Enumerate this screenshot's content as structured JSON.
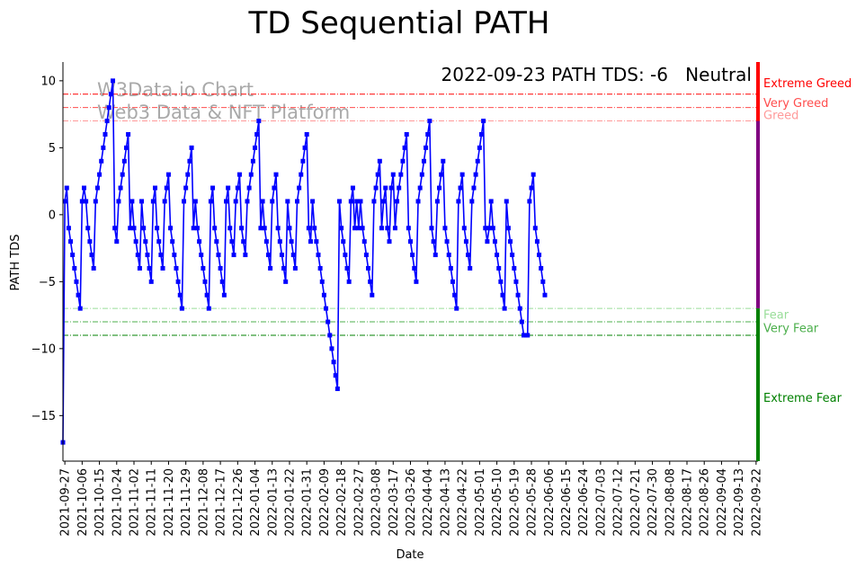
{
  "chart_data": {
    "type": "line",
    "title": "TD Sequential PATH",
    "xlabel": "Date",
    "ylabel": "PATH TDS",
    "ylim": [
      -18.4,
      11.4
    ],
    "yticks": [
      10,
      5,
      0,
      -5,
      -10,
      -15
    ],
    "ytick_labels": [
      "10",
      "5",
      "0",
      "−5",
      "−10",
      "−15"
    ],
    "x_start": "2021-09-26",
    "x_end": "2022-09-23",
    "x_tick_labels": [
      "2021-09-27",
      "2021-10-06",
      "2021-10-15",
      "2021-10-24",
      "2021-11-02",
      "2021-11-11",
      "2021-11-20",
      "2021-11-29",
      "2021-12-08",
      "2021-12-17",
      "2021-12-26",
      "2022-01-04",
      "2022-01-13",
      "2022-01-22",
      "2022-01-31",
      "2022-02-09",
      "2022-02-18",
      "2022-02-27",
      "2022-03-08",
      "2022-03-17",
      "2022-03-26",
      "2022-04-04",
      "2022-04-13",
      "2022-04-22",
      "2022-05-01",
      "2022-05-10",
      "2022-05-19",
      "2022-05-28",
      "2022-06-06",
      "2022-06-15",
      "2022-06-24",
      "2022-07-03",
      "2022-07-12",
      "2022-07-21",
      "2022-07-30",
      "2022-08-08",
      "2022-08-17",
      "2022-08-26",
      "2022-09-04",
      "2022-09-13",
      "2022-09-22"
    ],
    "annotation": "2022-09-23 PATH TDS: -6",
    "status": "Neutral",
    "status_color": "#800080",
    "watermark_lines": [
      "W3Data.io Chart",
      "Web3 Data & NFT Platform"
    ],
    "thresholds": [
      {
        "label": "Extreme Greed",
        "value": 9,
        "color": "#ff0000"
      },
      {
        "label": "Very Greed",
        "value": 8,
        "color": "#ff4d4d"
      },
      {
        "label": "Greed",
        "value": 7,
        "color": "#ff9999"
      },
      {
        "label": "Fear",
        "value": -7,
        "color": "#99dd99"
      },
      {
        "label": "Very Fear",
        "value": -8,
        "color": "#4caf4c"
      },
      {
        "label": "Extreme Fear",
        "value": -9,
        "color": "#008000"
      }
    ],
    "sidebar_colors": {
      "greed": "#ff0000",
      "neutral": "#800080",
      "fear": "#008000"
    },
    "series": [
      {
        "color": "#0000ff",
        "x_start": "2021-09-26",
        "values": [
          -17,
          1,
          2,
          -1,
          -2,
          -3,
          -4,
          -5,
          -6,
          -7,
          1,
          2,
          1,
          -1,
          -2,
          -3,
          -4,
          1,
          2,
          3,
          4,
          5,
          6,
          7,
          8,
          9,
          10,
          -1,
          -2,
          1,
          2,
          3,
          4,
          5,
          6,
          -1,
          1,
          -1,
          -2,
          -3,
          -4,
          1,
          -1,
          -2,
          -3,
          -4,
          -5,
          1,
          2,
          -1,
          -2,
          -3,
          -4,
          1,
          2,
          3,
          -1,
          -2,
          -3,
          -4,
          -5,
          -6,
          -7,
          1,
          2,
          3,
          4,
          5,
          -1,
          1,
          -1,
          -2,
          -3,
          -4,
          -5,
          -6,
          -7,
          1,
          2,
          -1,
          -2,
          -3,
          -4,
          -5,
          -6,
          1,
          2,
          -1,
          -2,
          -3,
          1,
          2,
          3,
          -1,
          -2,
          -3,
          1,
          2,
          3,
          4,
          5,
          6,
          7,
          -1,
          1,
          -1,
          -2,
          -3,
          -4,
          1,
          2,
          3,
          -1,
          -2,
          -3,
          -4,
          -5,
          1,
          -1,
          -2,
          -3,
          -4,
          1,
          2,
          3,
          4,
          5,
          6,
          -1,
          -2,
          1,
          -1,
          -2,
          -3,
          -4,
          -5,
          -6,
          -7,
          -8,
          -9,
          -10,
          -11,
          -12,
          -13,
          1,
          -1,
          -2,
          -3,
          -4,
          -5,
          1,
          2,
          -1,
          1,
          -1,
          1,
          -1,
          -2,
          -3,
          -4,
          -5,
          -6,
          1,
          2,
          3,
          4,
          -1,
          1,
          2,
          -1,
          -2,
          2,
          3,
          -1,
          1,
          2,
          3,
          4,
          5,
          6,
          -1,
          -2,
          -3,
          -4,
          -5,
          1,
          2,
          3,
          4,
          5,
          6,
          7,
          -1,
          -2,
          -3,
          1,
          2,
          3,
          4,
          -1,
          -2,
          -3,
          -4,
          -5,
          -6,
          -7,
          1,
          2,
          3,
          -1,
          -2,
          -3,
          -4,
          1,
          2,
          3,
          4,
          5,
          6,
          7,
          -1,
          -2,
          -1,
          1,
          -1,
          -2,
          -3,
          -4,
          -5,
          -6,
          -7,
          1,
          -1,
          -2,
          -3,
          -4,
          -5,
          -6,
          -7,
          -8,
          -9,
          -9,
          -9,
          1,
          2,
          3,
          -1,
          -2,
          -3,
          -4,
          -5,
          -6
        ]
      }
    ]
  }
}
